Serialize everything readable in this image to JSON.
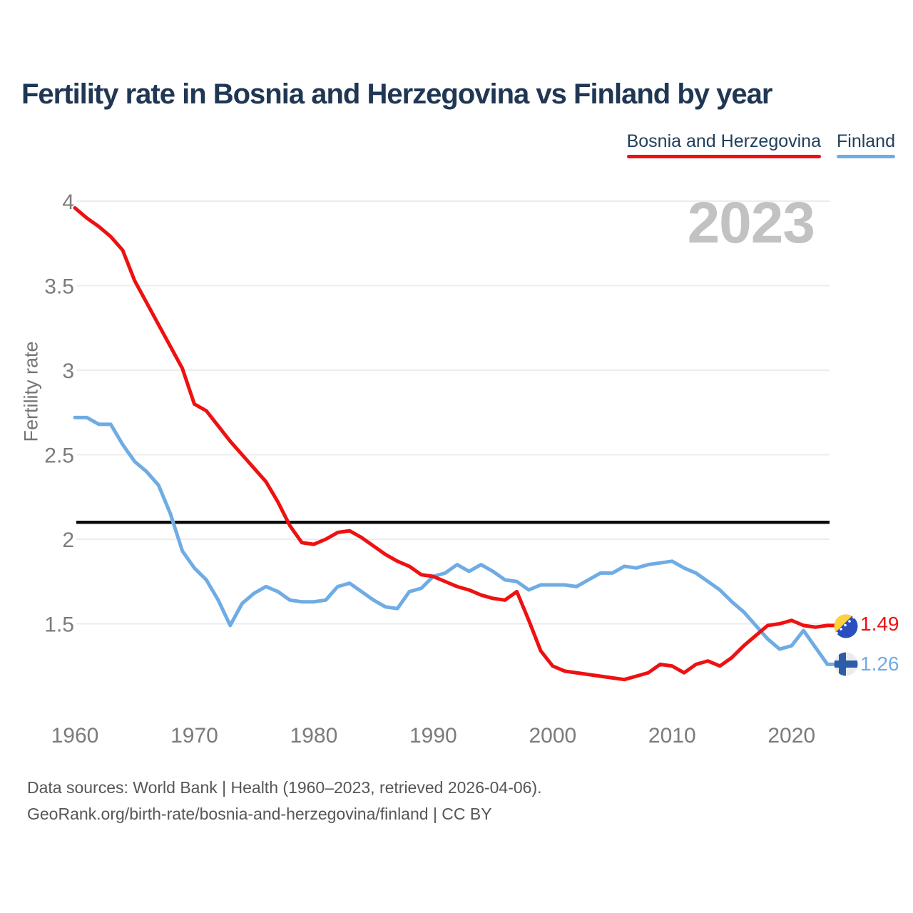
{
  "header": {
    "title": "Fertility rate in Bosnia and Herzegovina vs Finland by year"
  },
  "legend": {
    "items": [
      {
        "label": "Bosnia and Herzegovina",
        "color": "#ee1111"
      },
      {
        "label": "Finland",
        "color": "#6face4"
      }
    ]
  },
  "watermark": {
    "year_label": "2023"
  },
  "chart_data": {
    "type": "line",
    "title": "Fertility rate in Bosnia and Herzegovina vs Finland by year",
    "xlabel": "",
    "ylabel": "Fertility rate",
    "grid": "horizontal",
    "legend_position": "top-right",
    "xlim": [
      1960,
      2023
    ],
    "ylim": [
      1.1,
      4.05
    ],
    "x_ticks": [
      1960,
      1970,
      1980,
      1990,
      2000,
      2010,
      2020
    ],
    "y_ticks": [
      4,
      3.5,
      3,
      2.5,
      2,
      1.5
    ],
    "reference_line_y": 2.1,
    "x": [
      1960,
      1961,
      1962,
      1963,
      1964,
      1965,
      1966,
      1967,
      1968,
      1969,
      1970,
      1971,
      1972,
      1973,
      1974,
      1975,
      1976,
      1977,
      1978,
      1979,
      1980,
      1981,
      1982,
      1983,
      1984,
      1985,
      1986,
      1987,
      1988,
      1989,
      1990,
      1991,
      1992,
      1993,
      1994,
      1995,
      1996,
      1997,
      1998,
      1999,
      2000,
      2001,
      2002,
      2003,
      2004,
      2005,
      2006,
      2007,
      2008,
      2009,
      2010,
      2011,
      2012,
      2013,
      2014,
      2015,
      2016,
      2017,
      2018,
      2019,
      2020,
      2021,
      2022,
      2023
    ],
    "series": [
      {
        "name": "Bosnia and Herzegovina",
        "color": "#ee1111",
        "end_label": "1.49",
        "values": [
          3.96,
          3.9,
          3.85,
          3.79,
          3.71,
          3.53,
          3.4,
          3.27,
          3.14,
          3.01,
          2.8,
          2.76,
          2.67,
          2.58,
          2.5,
          2.42,
          2.34,
          2.22,
          2.08,
          1.98,
          1.97,
          2.0,
          2.04,
          2.05,
          2.01,
          1.96,
          1.91,
          1.87,
          1.84,
          1.79,
          1.78,
          1.75,
          1.72,
          1.7,
          1.67,
          1.65,
          1.64,
          1.69,
          1.52,
          1.34,
          1.25,
          1.22,
          1.21,
          1.2,
          1.19,
          1.18,
          1.17,
          1.19,
          1.21,
          1.26,
          1.25,
          1.21,
          1.26,
          1.28,
          1.25,
          1.3,
          1.37,
          1.43,
          1.49,
          1.5,
          1.52,
          1.49,
          1.48,
          1.49
        ]
      },
      {
        "name": "Finland",
        "color": "#6face4",
        "end_label": "1.26",
        "values": [
          2.72,
          2.72,
          2.68,
          2.68,
          2.56,
          2.46,
          2.4,
          2.32,
          2.15,
          1.93,
          1.83,
          1.76,
          1.64,
          1.49,
          1.62,
          1.68,
          1.72,
          1.69,
          1.64,
          1.63,
          1.63,
          1.64,
          1.72,
          1.74,
          1.69,
          1.64,
          1.6,
          1.59,
          1.69,
          1.71,
          1.78,
          1.8,
          1.85,
          1.81,
          1.85,
          1.81,
          1.76,
          1.75,
          1.7,
          1.73,
          1.73,
          1.73,
          1.72,
          1.76,
          1.8,
          1.8,
          1.84,
          1.83,
          1.85,
          1.86,
          1.87,
          1.83,
          1.8,
          1.75,
          1.7,
          1.63,
          1.57,
          1.49,
          1.41,
          1.35,
          1.37,
          1.46,
          1.36,
          1.26
        ]
      }
    ]
  },
  "end_labels": [
    {
      "value": "1.49",
      "color": "#ee1111",
      "flag": "bosnia-and-herzegovina"
    },
    {
      "value": "1.26",
      "color": "#6face4",
      "flag": "finland"
    }
  ],
  "flags": {
    "bosnia_and_herzegovina": {
      "field": "#2a4dbf",
      "triangle": "#ffd23c",
      "stars": "#ffffff"
    },
    "finland": {
      "field": "#ececec",
      "cross": "#2d5da9"
    }
  },
  "footer": {
    "line1": "Data sources: World Bank | Health (1960–2023, retrieved 2026-04-06).",
    "line2": "GeoRank.org/birth-rate/bosnia-and-herzegovina/finland | CC BY"
  }
}
